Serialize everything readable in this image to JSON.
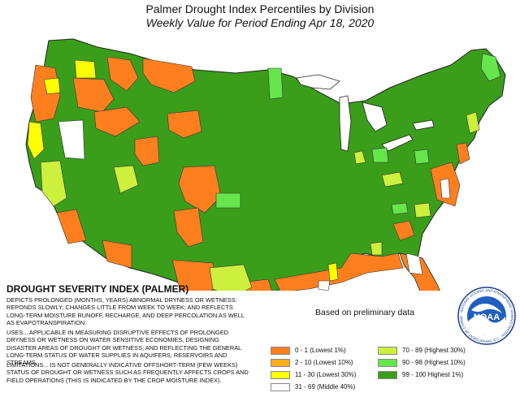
{
  "title": "Palmer Drought Index Percentiles by Division",
  "subtitle": "Weekly Value for Period Ending Apr 18, 2020",
  "index_title": "DROUGHT SEVERITY INDEX (PALMER)",
  "descriptions": {
    "depicts": "DEPICTS PROLONGED (MONTHS, YEARS) ABNORMAL DRYNESS OR WETNESS: REPONDS SLOWLY; CHANGES LITTLE FROM WEEK TO WEEK; AND REFLECTS LONG-TERM MOISTURE RUNOFF, RECHARGE, AND DEEP PERCOLATION AS WELL AS EVAPOTRANSPIRATION.",
    "uses": "USES... APPLICABLE IN MEASURING DISRUPTIVE EFFECTS OF PROLONGED DRYNESS OR WETNESS ON WATER SENSITIVE ECONOMIES, DESIGNING DISASTER AREAS OF DROUGHT OR WETNESS; AND REFLECTING THE GENERAL LONG-TERM STATUS OF WATER SUPPLIES IN AQUIFERS, RESERVOIRS AND STREAMS.",
    "limitations": "LIMITATIONS... IS NOT GENERALLY INDICATIVE OFFSHORT-TERM (FEW WEEKS) STATUS OF DROUGHT OR WETNESS SUCH AS FREQUENTLY AFFECTS CROPS AND FIELD OPERATIONS (THIS IS INDICATED BY THE CROP MOISTURE INDEX)."
  },
  "preliminary_note": "Based on preliminary data",
  "legend": [
    {
      "label": "0 - 1 (Lowest 1%)",
      "color": "#ff7f1e"
    },
    {
      "label": "2 - 10 (Lowest 10%)",
      "color": "#ffad1a"
    },
    {
      "label": "11 - 30 (Lowest 30%)",
      "color": "#ffff00"
    },
    {
      "label": "31 - 69 (Middle 40%)",
      "color": "#ffffff"
    },
    {
      "label": "70 - 89 (Highest 30%)",
      "color": "#ccf03c"
    },
    {
      "label": "90 - 98 (Highest 10%)",
      "color": "#66e64c"
    },
    {
      "label": "99 - 100 Highest 1%)",
      "color": "#3a9e1a"
    }
  ],
  "logo": {
    "text": "NOAA",
    "ring_text": "NATIONAL OCEANIC AND ATMOSPHERIC ADMINISTRATION · U.S. DEPARTMENT OF COMMERCE"
  },
  "map_colors": {
    "wet_extreme": "#3a9e1a",
    "wet_high": "#66e64c",
    "wet_moderate": "#ccf03c",
    "normal": "#ffffff",
    "dry_moderate": "#ffff00",
    "dry_severe": "#ffad1a",
    "dry_extreme": "#ff7f1e",
    "lakes": "#ffffff"
  }
}
